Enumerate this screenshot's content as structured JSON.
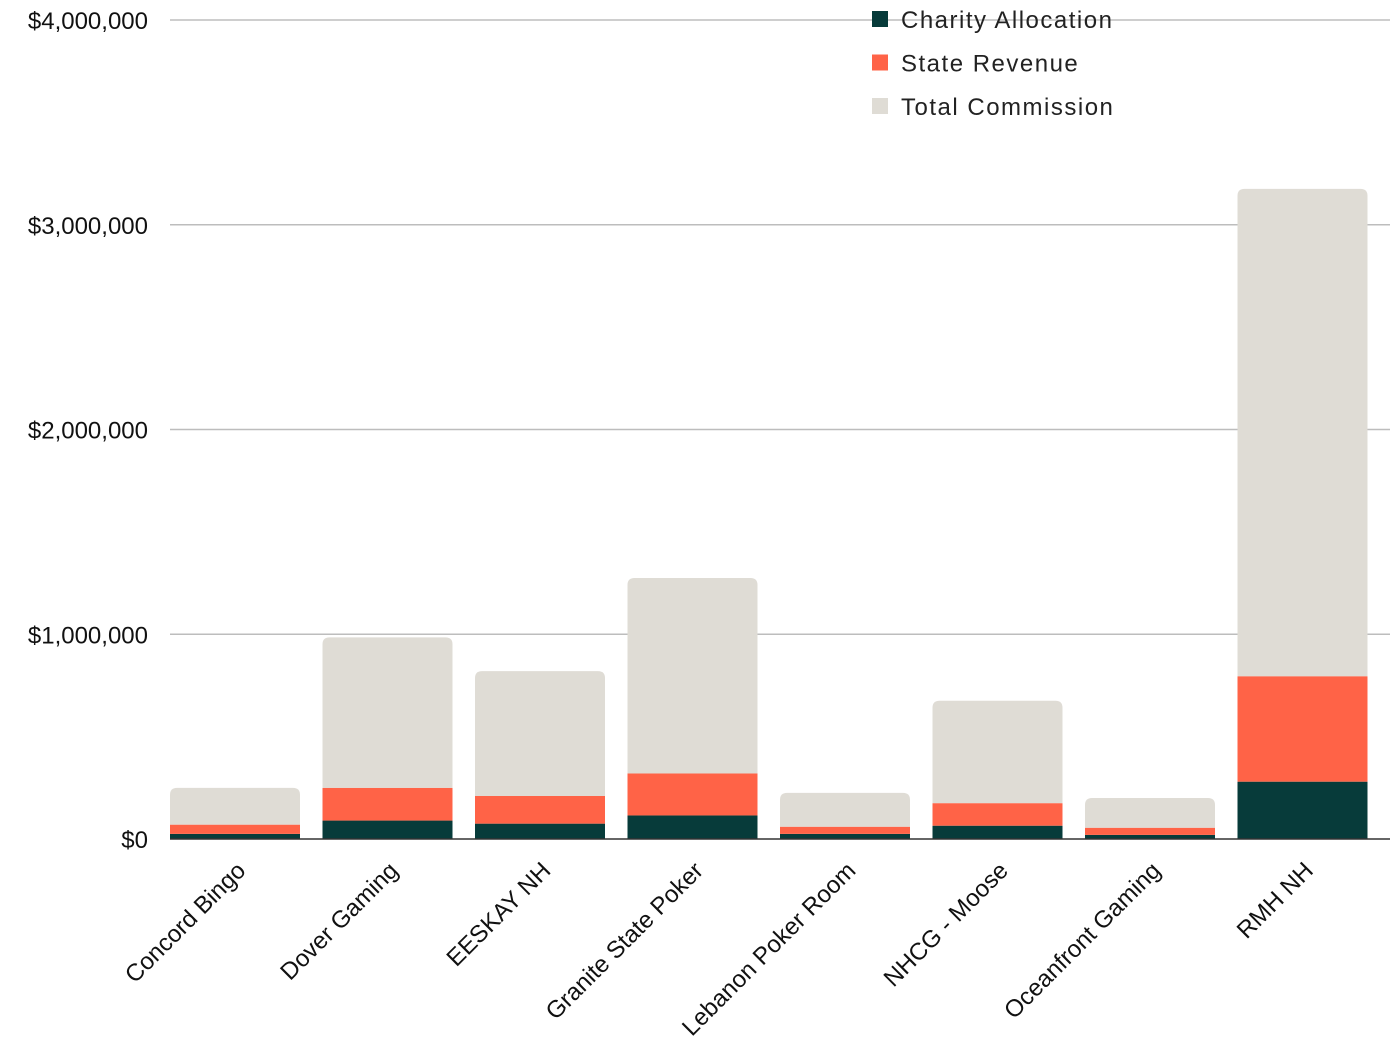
{
  "chart_data": {
    "type": "bar",
    "stacked": true,
    "categories": [
      "Concord Bingo",
      "Dover Gaming",
      "EESKAY NH",
      "Granite State Poker",
      "Lebanon Poker Room",
      "NHCG - Moose",
      "Oceanfront Gaming",
      "RMH NH"
    ],
    "series": [
      {
        "name": "Charity Allocation",
        "color": "#073b3a",
        "values": [
          25000,
          90000,
          75000,
          115000,
          25000,
          65000,
          20000,
          280000
        ]
      },
      {
        "name": "State Revenue",
        "color": "#ff6347",
        "values": [
          45000,
          160000,
          135000,
          205000,
          35000,
          110000,
          35000,
          515000
        ]
      },
      {
        "name": "Total Commission",
        "color": "#dfdcd5",
        "values": [
          180000,
          735000,
          610000,
          955000,
          165000,
          500000,
          145000,
          2380000
        ]
      }
    ],
    "yticks": [
      "$0",
      "$1,000,000",
      "$2,000,000",
      "$3,000,000",
      "$4,000,000"
    ],
    "ylim": [
      0,
      4000000
    ],
    "grid": true,
    "legend_position": "top-right",
    "xlabel": "",
    "ylabel": ""
  }
}
